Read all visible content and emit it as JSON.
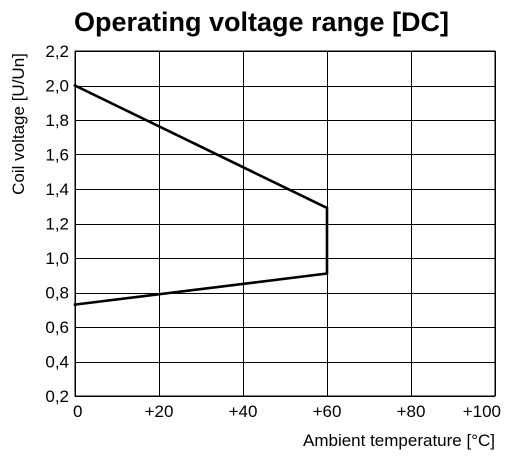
{
  "chart_data": {
    "type": "line",
    "title": "Operating voltage range [DC]",
    "xlabel": "Ambient temperature [°C]",
    "ylabel": "Coil voltage [U/Un]",
    "xlim": [
      0,
      100
    ],
    "ylim": [
      0.2,
      2.2
    ],
    "x_ticks": [
      0,
      20,
      40,
      60,
      80,
      100
    ],
    "x_tick_labels": [
      "0",
      "+20",
      "+40",
      "+60",
      "+80",
      "+100"
    ],
    "y_ticks": [
      0.2,
      0.4,
      0.6,
      0.8,
      1.0,
      1.2,
      1.4,
      1.6,
      1.8,
      2.0,
      2.2
    ],
    "y_tick_labels": [
      "0,2",
      "0,4",
      "0,6",
      "0,8",
      "1,0",
      "1,2",
      "1,4",
      "1,6",
      "1,8",
      "2,0",
      "2,2"
    ],
    "grid": true,
    "series": [
      {
        "x": [
          0,
          60,
          60,
          0
        ],
        "y": [
          2.0,
          1.29,
          0.91,
          0.73
        ]
      }
    ],
    "colors": {
      "line": "#000000",
      "grid": "#000000",
      "background": "#ffffff"
    }
  }
}
